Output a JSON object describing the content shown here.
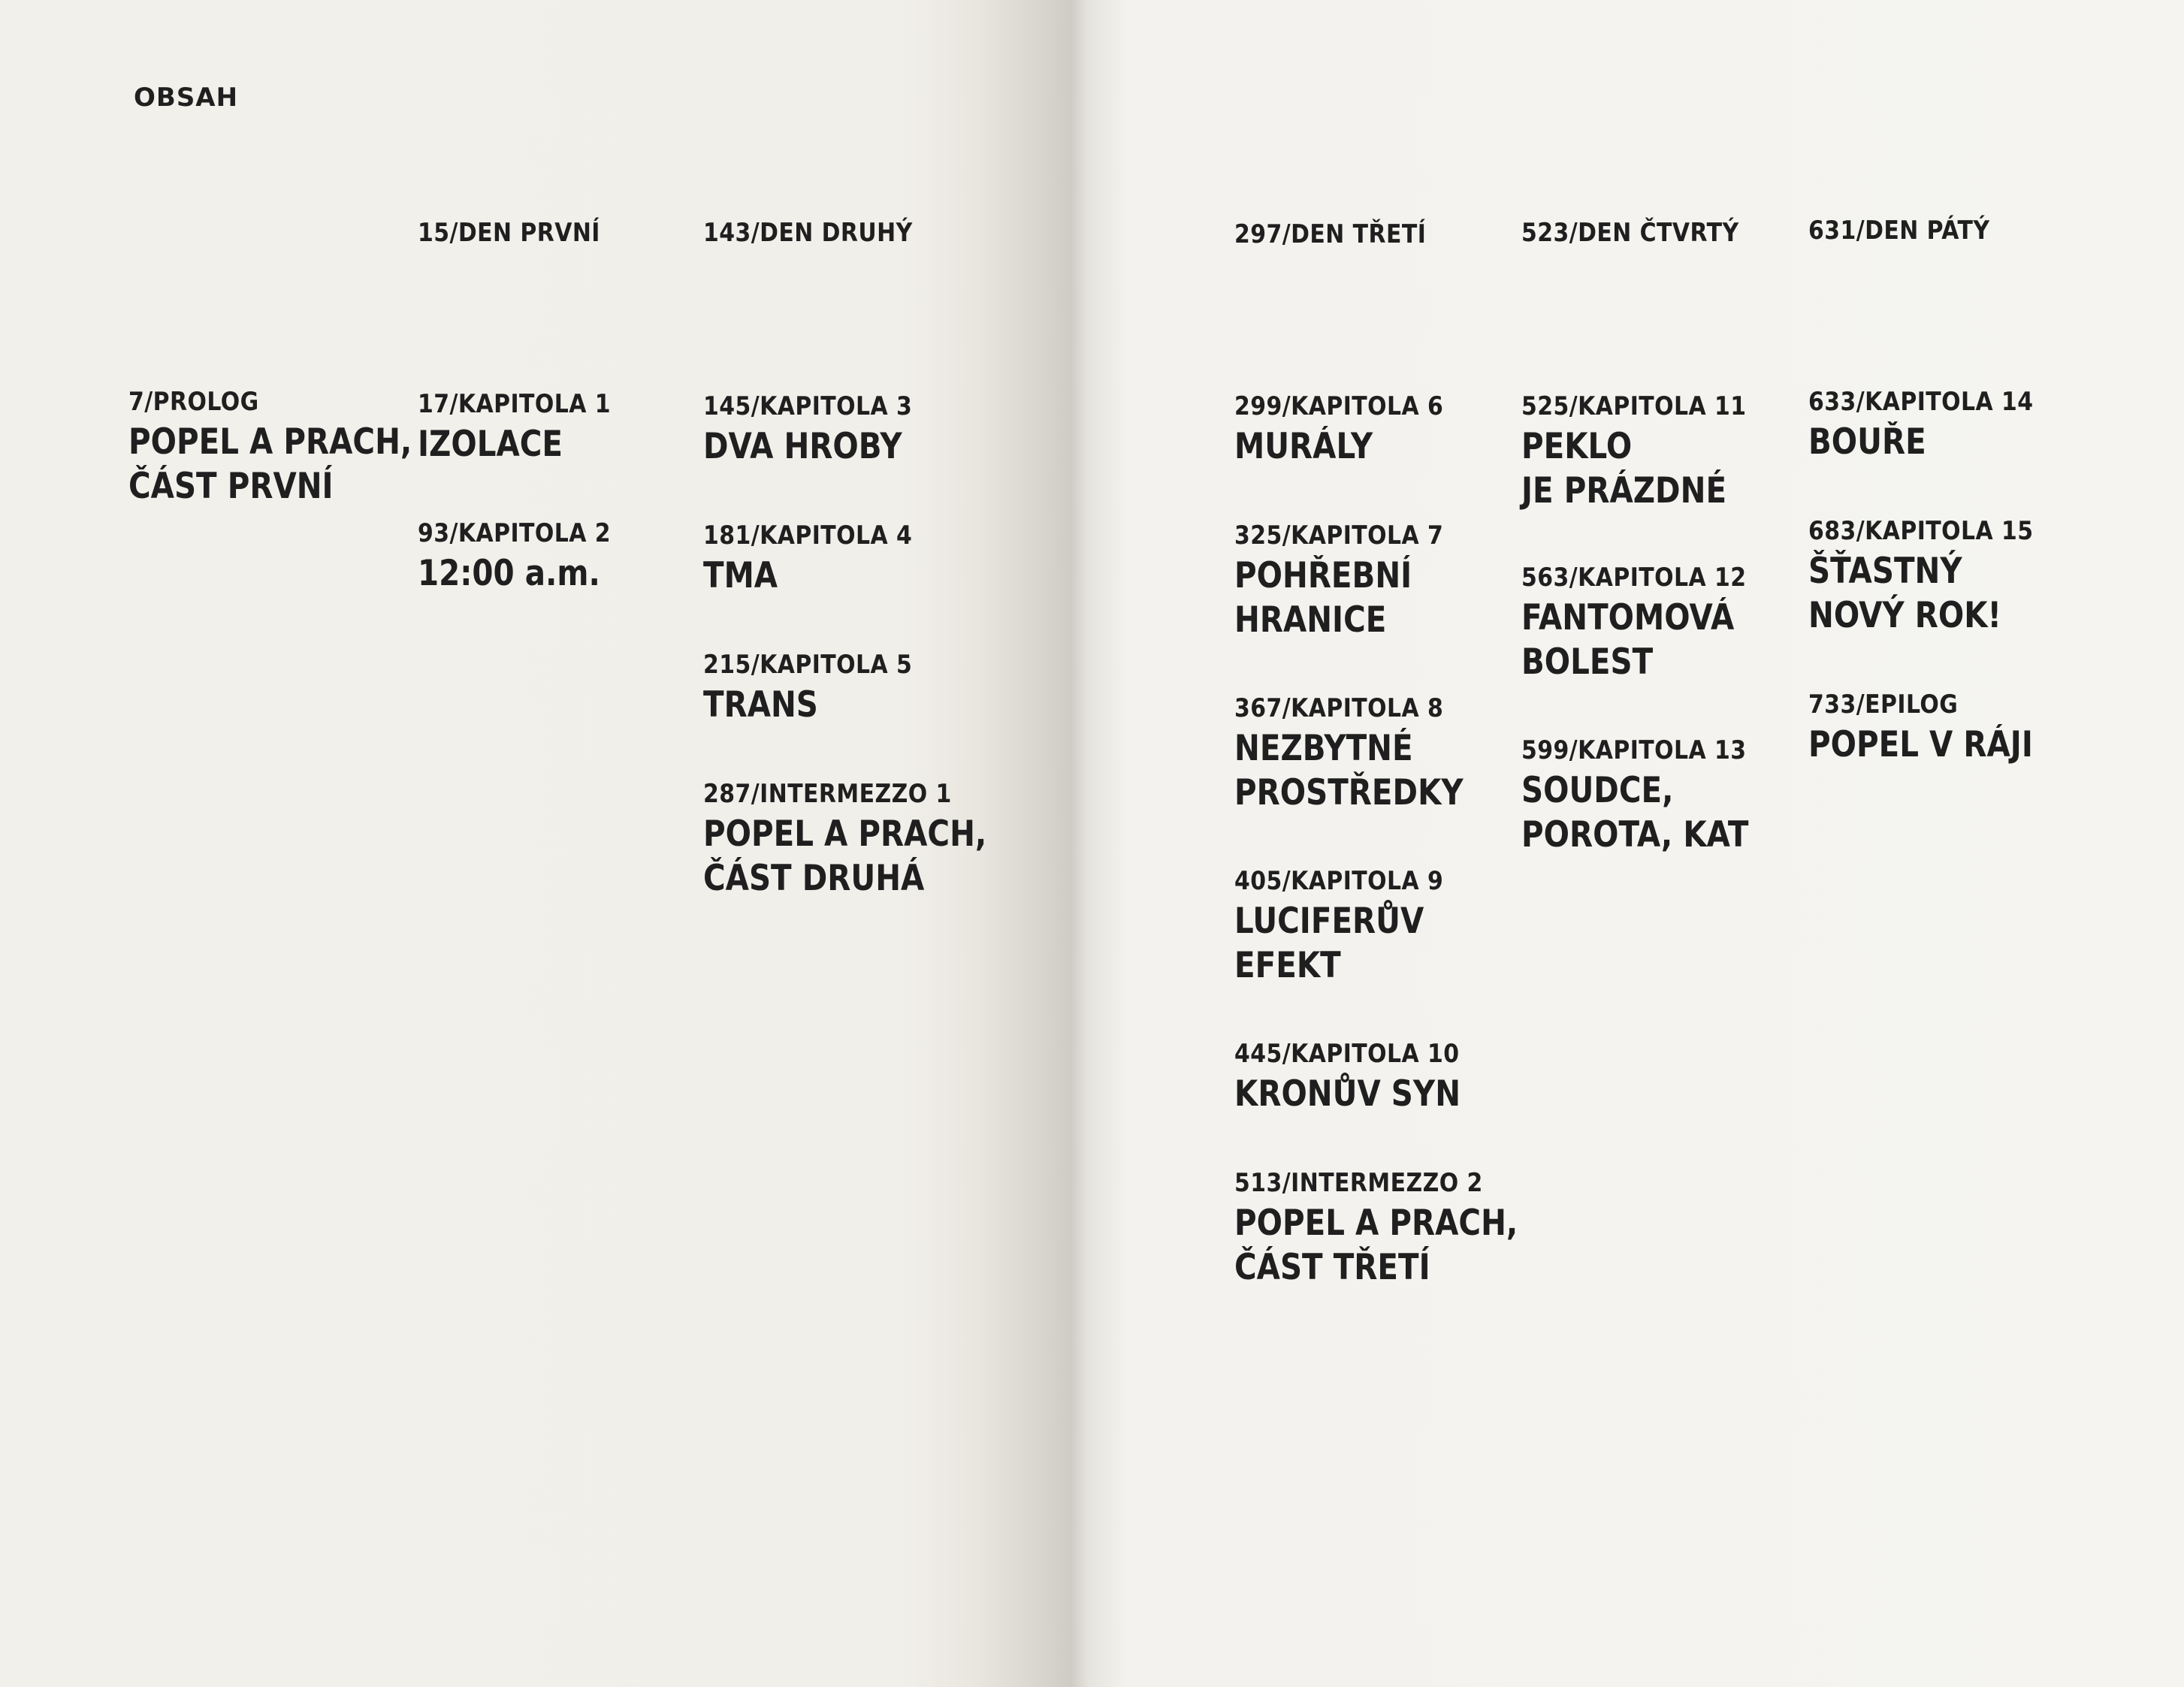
{
  "page_heading": "OBSAH",
  "columns": [
    {
      "day": null,
      "entries": [
        {
          "label": "7/PROLOG",
          "title": [
            "POPEL A PRACH,",
            "ČÁST PRVNÍ"
          ]
        }
      ]
    },
    {
      "day": "15/DEN PRVNÍ",
      "entries": [
        {
          "label": "17/KAPITOLA 1",
          "title": [
            "IZOLACE"
          ]
        },
        {
          "label": "93/KAPITOLA 2",
          "title": [
            "12:00 a.m."
          ]
        }
      ]
    },
    {
      "day": "143/DEN DRUHÝ",
      "entries": [
        {
          "label": "145/KAPITOLA 3",
          "title": [
            "DVA HROBY"
          ]
        },
        {
          "label": "181/KAPITOLA 4",
          "title": [
            "TMA"
          ]
        },
        {
          "label": "215/KAPITOLA 5",
          "title": [
            "TRANS"
          ]
        },
        {
          "label": "287/INTERMEZZO 1",
          "title": [
            "POPEL A PRACH,",
            "ČÁST DRUHÁ"
          ]
        }
      ]
    },
    {
      "day": "297/DEN TŘETÍ",
      "entries": [
        {
          "label": "299/KAPITOLA 6",
          "title": [
            "MURÁLY"
          ]
        },
        {
          "label": "325/KAPITOLA 7",
          "title": [
            "POHŘEBNÍ",
            "HRANICE"
          ]
        },
        {
          "label": "367/KAPITOLA 8",
          "title": [
            "NEZBYTNÉ",
            "PROSTŘEDKY"
          ]
        },
        {
          "label": "405/KAPITOLA 9",
          "title": [
            "LUCIFERŮV",
            "EFEKT"
          ]
        },
        {
          "label": "445/KAPITOLA 10",
          "title": [
            "KRONŮV SYN"
          ]
        },
        {
          "label": "513/INTERMEZZO 2",
          "title": [
            "POPEL A PRACH,",
            "ČÁST TŘETÍ"
          ]
        }
      ]
    },
    {
      "day": "523/DEN ČTVRTÝ",
      "entries": [
        {
          "label": "525/KAPITOLA 11",
          "title": [
            "PEKLO",
            "JE PRÁZDNÉ"
          ]
        },
        {
          "label": "563/KAPITOLA 12",
          "title": [
            "FANTOMOVÁ",
            "BOLEST"
          ]
        },
        {
          "label": "599/KAPITOLA 13",
          "title": [
            "SOUDCE,",
            "POROTA, KAT"
          ]
        }
      ]
    },
    {
      "day": "631/DEN PÁTÝ",
      "entries": [
        {
          "label": "633/KAPITOLA 14",
          "title": [
            "BOUŘE"
          ]
        },
        {
          "label": "683/KAPITOLA 15",
          "title": [
            "ŠŤASTNÝ",
            "NOVÝ ROK!"
          ]
        },
        {
          "label": "733/EPILOG",
          "title": [
            "POPEL V RÁJI"
          ]
        }
      ]
    }
  ]
}
